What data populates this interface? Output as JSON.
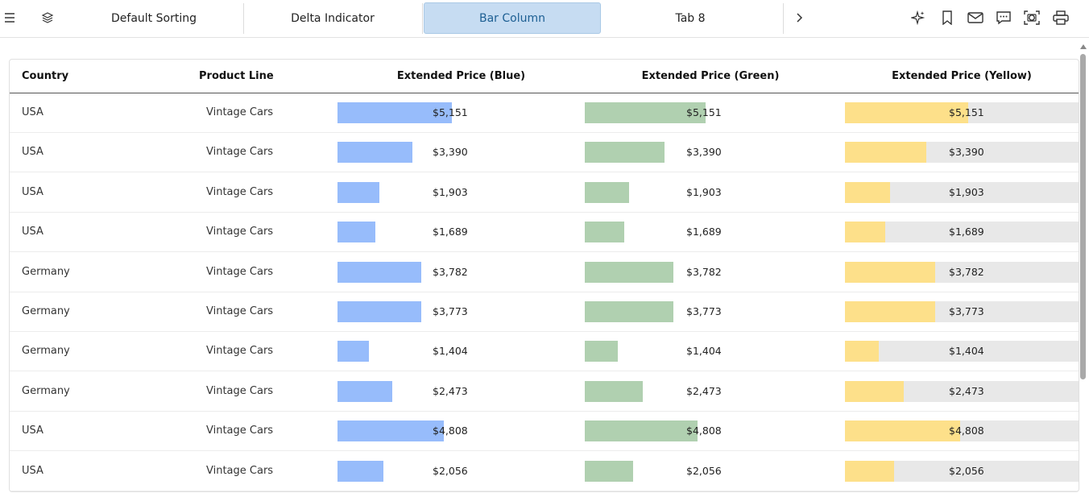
{
  "toolbar": {
    "tabs": [
      {
        "label": "Default Sorting"
      },
      {
        "label": "Delta Indicator"
      },
      {
        "label": "Bar Column"
      },
      {
        "label": "Tab 8"
      }
    ],
    "active_tab": "Bar Column",
    "icons": [
      "menu-icon",
      "layers-icon",
      "chevron-right-icon",
      "sparkle-icon",
      "bookmark-icon",
      "mail-icon",
      "comment-icon",
      "screenshot-icon",
      "print-icon"
    ]
  },
  "grid": {
    "columns": [
      "Country",
      "Product Line",
      "Extended Price (Blue)",
      "Extended Price (Green)",
      "Extended Price (Yellow)"
    ],
    "bar_colors": {
      "blue": "#97bcfb",
      "green": "#b0d0b0",
      "yellow": "#fde08a",
      "yellow_bg": "#e8e8e8"
    },
    "rows": [
      {
        "country": "USA",
        "product_line": "Vintage Cars",
        "price": "$5,151",
        "fraction": 1.0
      },
      {
        "country": "USA",
        "product_line": "Vintage Cars",
        "price": "$3,390",
        "fraction": 0.658
      },
      {
        "country": "USA",
        "product_line": "Vintage Cars",
        "price": "$1,903",
        "fraction": 0.369
      },
      {
        "country": "USA",
        "product_line": "Vintage Cars",
        "price": "$1,689",
        "fraction": 0.328
      },
      {
        "country": "Germany",
        "product_line": "Vintage Cars",
        "price": "$3,782",
        "fraction": 0.734
      },
      {
        "country": "Germany",
        "product_line": "Vintage Cars",
        "price": "$3,773",
        "fraction": 0.732
      },
      {
        "country": "Germany",
        "product_line": "Vintage Cars",
        "price": "$1,404",
        "fraction": 0.273
      },
      {
        "country": "Germany",
        "product_line": "Vintage Cars",
        "price": "$2,473",
        "fraction": 0.48
      },
      {
        "country": "USA",
        "product_line": "Vintage Cars",
        "price": "$4,808",
        "fraction": 0.933
      },
      {
        "country": "USA",
        "product_line": "Vintage Cars",
        "price": "$2,056",
        "fraction": 0.399
      }
    ]
  }
}
